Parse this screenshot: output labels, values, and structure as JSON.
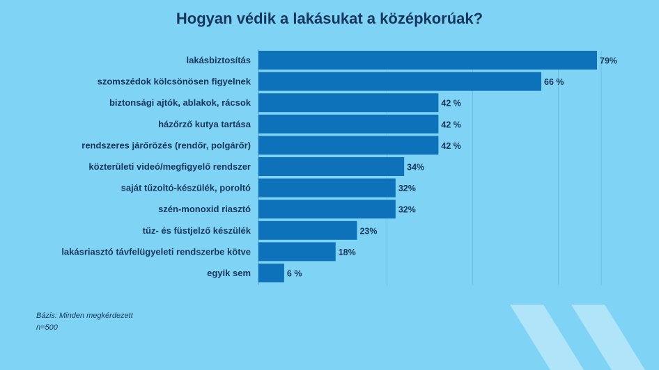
{
  "title": "Hogyan védik a lakásukat a középkorúak?",
  "footnote": {
    "line1": "Bázis: Minden megkérdezett",
    "line2": "n=500"
  },
  "colors": {
    "background": "#7fd3f5",
    "bar": "#0d72b9",
    "text": "#17365d",
    "deco": "#b6e7fa"
  },
  "chart_data": {
    "type": "bar",
    "orientation": "horizontal",
    "title": "Hogyan védik a lakásukat a középkorúak?",
    "categories": [
      "lakásbiztosítás",
      "szomszédok kölcsönösen figyelnek",
      "biztonsági ajtók, ablakok, rácsok",
      "házőrző kutya tartása",
      "rendszeres járőrözés (rendőr, polgárőr)",
      "közterületi videó/megfigyelő rendszer",
      "saját tűzoltó-készülék, poroltó",
      "szén-monoxid riasztó",
      "tűz- és füstjelző készülék",
      "lakásriasztó távfelügyeleti rendszerbe kötve",
      "egyik sem"
    ],
    "values": [
      79,
      66,
      42,
      42,
      42,
      34,
      32,
      32,
      23,
      18,
      6
    ],
    "value_labels": [
      "79%",
      "66 %",
      "42 %",
      "42 %",
      "42 %",
      "34%",
      "32%",
      "32%",
      "23%",
      "18%",
      "6 %"
    ],
    "unit": "%",
    "xlim": [
      0,
      80
    ],
    "grid": true,
    "legend": "none"
  }
}
